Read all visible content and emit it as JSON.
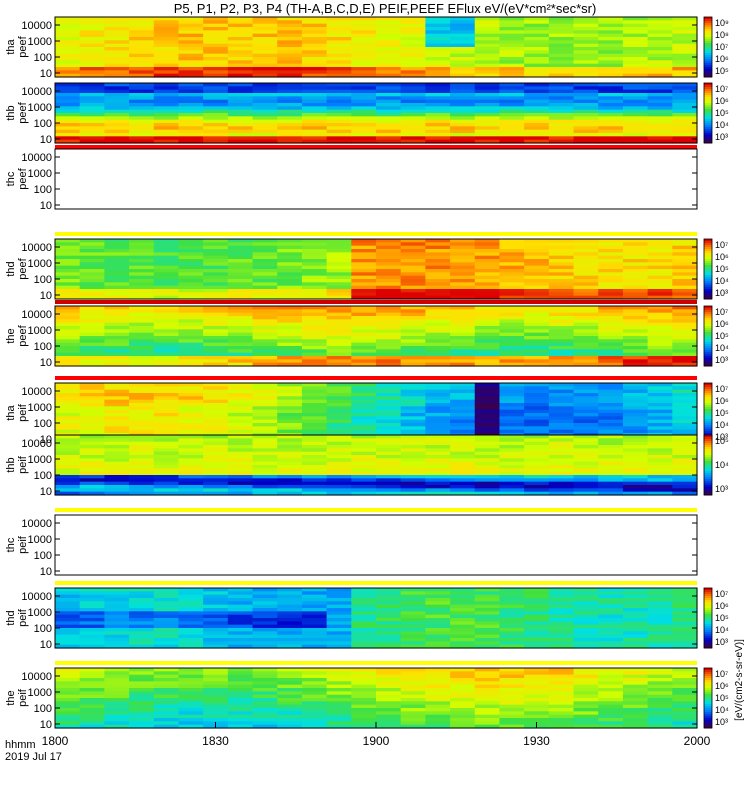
{
  "chart_data": {
    "type": "heatmap",
    "title": "P5, P1, P2, P3, P4 (TH-A,B,C,D,E) PEIF,PEEF EFlux eV/(eV*cm²*sec*sr)",
    "time_label": "hhmm",
    "date_label": "2019 Jul 17",
    "x_ticks": [
      "1800",
      "1830",
      "1900",
      "1930",
      "2000"
    ],
    "x_range_minutes": [
      0,
      120
    ],
    "colorbar_units": "[eV/(cm2-s-sr-eV)]",
    "panels": [
      {
        "label1": "tha",
        "label2": "peef",
        "y_ticks": [
          "10",
          "100",
          "1000",
          "10000"
        ],
        "has_data": true,
        "colorbar_ticks": [
          "10⁵",
          "10⁶",
          "10⁷",
          "10⁸",
          "10⁹"
        ]
      },
      {
        "label1": "thb",
        "label2": "peef",
        "y_ticks": [
          "10",
          "100",
          "1000",
          "10000"
        ],
        "has_data": true,
        "colorbar_ticks": [
          "10³",
          "10⁴",
          "10⁵",
          "10⁶",
          "10⁷"
        ]
      },
      {
        "label1": "thc",
        "label2": "peef",
        "y_ticks": [
          "10",
          "100",
          "1000",
          "10000"
        ],
        "has_data": false,
        "colorbar_ticks": []
      },
      {
        "label1": "thd",
        "label2": "peef",
        "y_ticks": [
          "10",
          "100",
          "1000",
          "10000"
        ],
        "has_data": true,
        "colorbar_ticks": [
          "10³",
          "10⁴",
          "10⁵",
          "10⁶",
          "10⁷"
        ]
      },
      {
        "label1": "the",
        "label2": "peef",
        "y_ticks": [
          "10",
          "100",
          "1000",
          "10000"
        ],
        "has_data": true,
        "colorbar_ticks": [
          "10³",
          "10⁴",
          "10⁵",
          "10⁶",
          "10⁷"
        ]
      },
      {
        "label1": "tha",
        "label2": "peif",
        "y_ticks": [
          "10",
          "100",
          "1000",
          "10000"
        ],
        "has_data": true,
        "colorbar_ticks": [
          "10³",
          "10⁴",
          "10⁵",
          "10⁶",
          "10⁷"
        ]
      },
      {
        "label1": "thb",
        "label2": "peif",
        "y_ticks": [
          "10",
          "100",
          "1000",
          "10000"
        ],
        "has_data": true,
        "colorbar_ticks": [
          "10³",
          "10⁴",
          "10⁵"
        ]
      },
      {
        "label1": "thc",
        "label2": "peif",
        "y_ticks": [
          "10",
          "100",
          "1000",
          "10000"
        ],
        "has_data": false,
        "colorbar_ticks": []
      },
      {
        "label1": "thd",
        "label2": "peif",
        "y_ticks": [
          "10",
          "100",
          "1000",
          "10000"
        ],
        "has_data": true,
        "colorbar_ticks": [
          "10³",
          "10⁴",
          "10⁵",
          "10⁶",
          "10⁷"
        ]
      },
      {
        "label1": "the",
        "label2": "peif",
        "y_ticks": [
          "10",
          "100",
          "1000",
          "10000"
        ],
        "has_data": true,
        "colorbar_ticks": [
          "10³",
          "10⁴",
          "10⁵",
          "10⁶",
          "10⁷"
        ]
      }
    ]
  }
}
